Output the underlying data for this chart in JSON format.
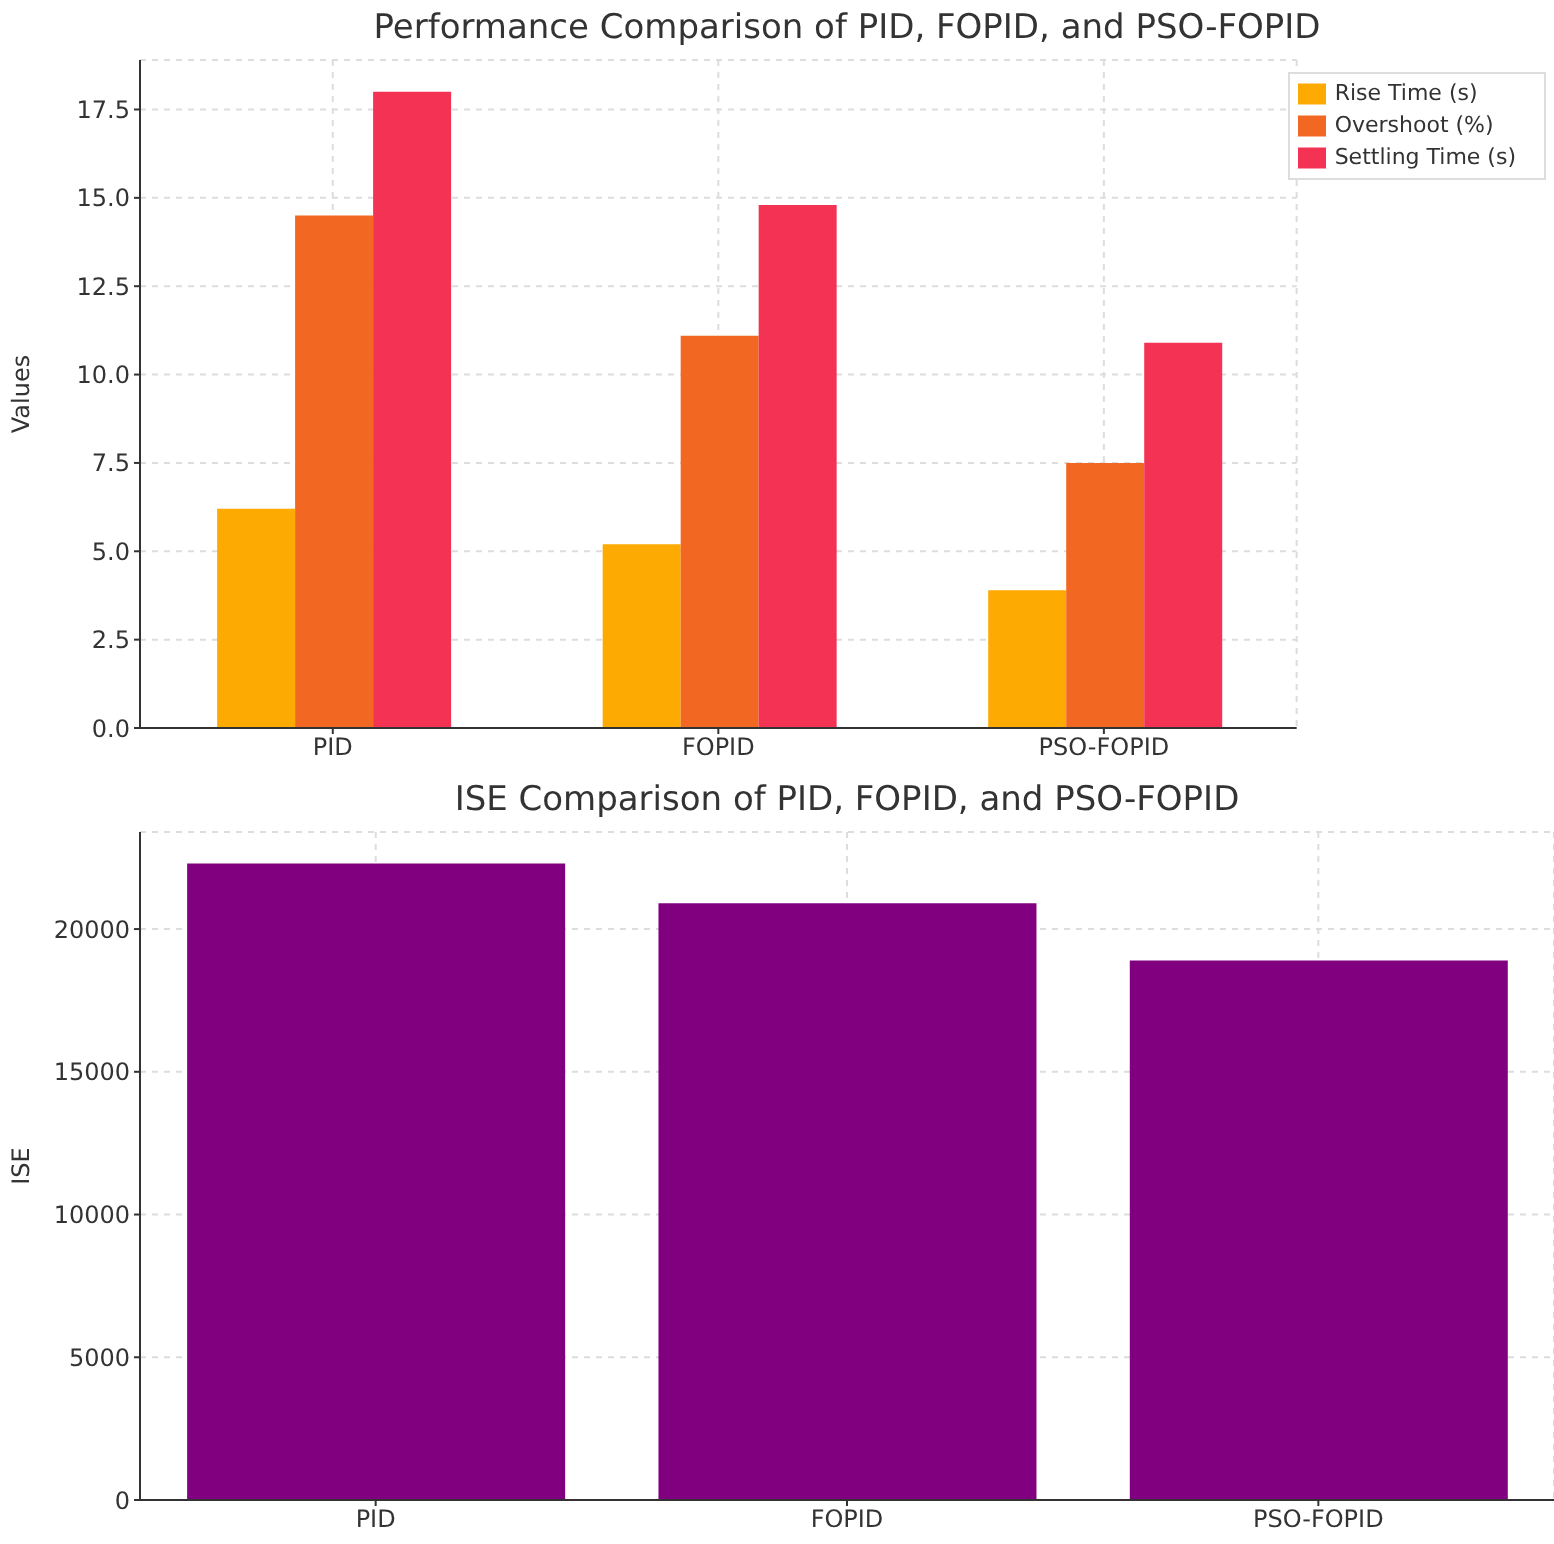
{
  "chart_data": [
    {
      "type": "bar",
      "title": "Performance Comparison of PID, FOPID, and PSO-FOPID",
      "ylabel": "Values",
      "categories": [
        "PID",
        "FOPID",
        "PSO-FOPID"
      ],
      "series": [
        {
          "name": "Rise Time (s)",
          "color": "#fdab02",
          "values": [
            6.2,
            5.2,
            3.9
          ]
        },
        {
          "name": "Overshoot (%)",
          "color": "#f26722",
          "values": [
            14.5,
            11.1,
            7.5
          ]
        },
        {
          "name": "Settling Time (s)",
          "color": "#f43254",
          "values": [
            18.0,
            14.8,
            10.9
          ]
        }
      ],
      "ylim": [
        0,
        18.9
      ],
      "yticks": [
        {
          "value": 0,
          "label": "0.0"
        },
        2.5,
        {
          "value": 5,
          "label": "5.0"
        },
        7.5,
        {
          "value": 10,
          "label": "10.0"
        },
        12.5,
        {
          "value": 15,
          "label": "15.0"
        },
        17.5
      ],
      "grid": true,
      "legend": "top right"
    },
    {
      "type": "bar",
      "title": "ISE Comparison of PID, FOPID, and PSO-FOPID",
      "ylabel": "ISE",
      "categories": [
        "PID",
        "FOPID",
        "PSO-FOPID"
      ],
      "values": [
        22300,
        20900,
        18900
      ],
      "color": "#800080",
      "ylim": [
        0,
        23400
      ],
      "yticks": [
        0,
        5000,
        10000,
        15000,
        20000
      ],
      "grid": true
    }
  ]
}
